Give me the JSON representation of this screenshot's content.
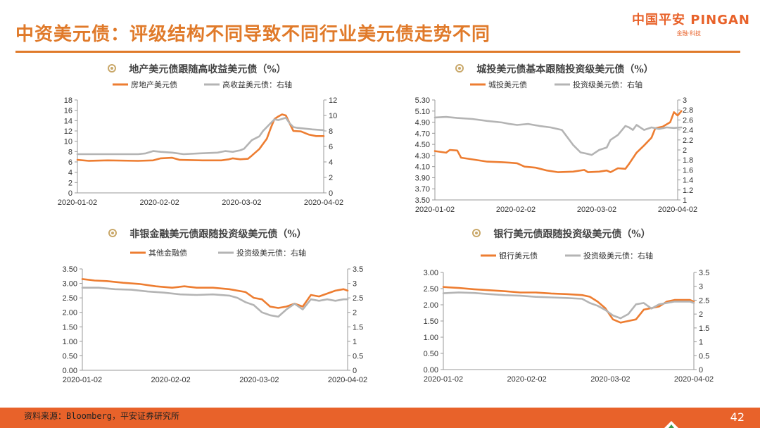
{
  "header": {
    "title": "中资美元债：评级结构不同导致不同行业美元债走势不同",
    "logo_text": "中国平安 PINGAN",
    "logo_sub": "金融·科技"
  },
  "footer": {
    "source": "资料来源：Bloomberg，平安证券研究所",
    "page_number": "42"
  },
  "colors": {
    "accent": "#e07a2a",
    "series_orange": "#ed7d31",
    "series_gray": "#b4b4b4",
    "footer": "#e8622a"
  },
  "chart_data": [
    {
      "type": "line",
      "title": "地产美元债跟随高收益美元债（%）",
      "x_ticks": [
        "2020-01-02",
        "2020-02-02",
        "2020-03-02",
        "2020-04-02"
      ],
      "x_range": [
        0,
        65
      ],
      "y_left": {
        "ticks": [
          "0",
          "2",
          "4",
          "6",
          "8",
          "10",
          "12",
          "14",
          "16",
          "18"
        ],
        "range": [
          0,
          18
        ]
      },
      "y_right": {
        "ticks": [
          "0",
          "2",
          "4",
          "6",
          "8",
          "10",
          "12"
        ],
        "range": [
          0,
          12
        ]
      },
      "series": [
        {
          "name": "房地产美元债",
          "axis": "left",
          "color": "#ed7d31",
          "points": [
            [
              0,
              6.4
            ],
            [
              3,
              6.2
            ],
            [
              8,
              6.3
            ],
            [
              16,
              6.2
            ],
            [
              20,
              6.3
            ],
            [
              22,
              6.7
            ],
            [
              25,
              6.8
            ],
            [
              27,
              6.4
            ],
            [
              33,
              6.3
            ],
            [
              38,
              6.3
            ],
            [
              40,
              6.5
            ],
            [
              41,
              6.7
            ],
            [
              43,
              6.5
            ],
            [
              45,
              6.6
            ],
            [
              46,
              7.2
            ],
            [
              48,
              8.5
            ],
            [
              50,
              10.5
            ],
            [
              51,
              12.5
            ],
            [
              52,
              14.3
            ],
            [
              53,
              14.8
            ],
            [
              54,
              15.2
            ],
            [
              55,
              15.0
            ],
            [
              56,
              13.5
            ],
            [
              57,
              12.0
            ],
            [
              59,
              11.9
            ],
            [
              61,
              11.3
            ],
            [
              63,
              11.0
            ],
            [
              65,
              11.0
            ]
          ]
        },
        {
          "name": "高收益美元债：右轴",
          "axis": "right",
          "color": "#b4b4b4",
          "points": [
            [
              0,
              5.0
            ],
            [
              5,
              5.0
            ],
            [
              10,
              5.0
            ],
            [
              16,
              5.0
            ],
            [
              18,
              5.1
            ],
            [
              20,
              5.4
            ],
            [
              22,
              5.3
            ],
            [
              25,
              5.2
            ],
            [
              28,
              5.0
            ],
            [
              32,
              5.1
            ],
            [
              37,
              5.2
            ],
            [
              39,
              5.4
            ],
            [
              41,
              5.3
            ],
            [
              43,
              5.5
            ],
            [
              44,
              5.7
            ],
            [
              46,
              6.8
            ],
            [
              48,
              7.3
            ],
            [
              49,
              8.0
            ],
            [
              51,
              9.0
            ],
            [
              52,
              9.5
            ],
            [
              53,
              9.4
            ],
            [
              55,
              9.7
            ],
            [
              56,
              9.0
            ],
            [
              57,
              8.5
            ],
            [
              58,
              8.4
            ],
            [
              60,
              8.3
            ],
            [
              62,
              8.2
            ],
            [
              65,
              8.1
            ]
          ]
        }
      ]
    },
    {
      "type": "line",
      "title": "城投美元债基本跟随投资级美元债（%）",
      "x_ticks": [
        "2020-01-02",
        "2020-02-02",
        "2020-03-02",
        "2020-04-02"
      ],
      "x_range": [
        0,
        65
      ],
      "y_left": {
        "ticks": [
          "3.50",
          "3.70",
          "3.90",
          "4.10",
          "4.30",
          "4.50",
          "4.70",
          "4.90",
          "5.10",
          "5.30"
        ],
        "range": [
          3.5,
          5.3
        ]
      },
      "y_right": {
        "ticks": [
          "1",
          "1.2",
          "1.4",
          "1.6",
          "1.8",
          "2",
          "2.2",
          "2.4",
          "2.6",
          "2.8",
          "3"
        ],
        "range": [
          1,
          3
        ]
      },
      "series": [
        {
          "name": "城投美元债",
          "axis": "left",
          "color": "#ed7d31",
          "points": [
            [
              0,
              4.38
            ],
            [
              3,
              4.35
            ],
            [
              4,
              4.4
            ],
            [
              6,
              4.39
            ],
            [
              7,
              4.26
            ],
            [
              10,
              4.23
            ],
            [
              14,
              4.19
            ],
            [
              18,
              4.18
            ],
            [
              20,
              4.17
            ],
            [
              22,
              4.16
            ],
            [
              24,
              4.1
            ],
            [
              27,
              4.08
            ],
            [
              30,
              4.03
            ],
            [
              33,
              4.0
            ],
            [
              37,
              4.01
            ],
            [
              40,
              4.04
            ],
            [
              41,
              4.0
            ],
            [
              44,
              4.01
            ],
            [
              46,
              4.03
            ],
            [
              47,
              4.0
            ],
            [
              49,
              4.07
            ],
            [
              51,
              4.06
            ],
            [
              52,
              4.15
            ],
            [
              54,
              4.35
            ],
            [
              56,
              4.48
            ],
            [
              58,
              4.62
            ],
            [
              59,
              4.79
            ],
            [
              61,
              4.82
            ],
            [
              63,
              4.9
            ],
            [
              64,
              5.08
            ],
            [
              65,
              5.02
            ],
            [
              66,
              5.1
            ]
          ]
        },
        {
          "name": "投资级美元债：右轴",
          "axis": "right",
          "color": "#b4b4b4",
          "points": [
            [
              0,
              2.65
            ],
            [
              3,
              2.66
            ],
            [
              6,
              2.64
            ],
            [
              10,
              2.62
            ],
            [
              14,
              2.58
            ],
            [
              18,
              2.55
            ],
            [
              20,
              2.52
            ],
            [
              22,
              2.5
            ],
            [
              25,
              2.52
            ],
            [
              28,
              2.48
            ],
            [
              31,
              2.45
            ],
            [
              34,
              2.4
            ],
            [
              35,
              2.3
            ],
            [
              37,
              2.1
            ],
            [
              39,
              1.95
            ],
            [
              41,
              1.92
            ],
            [
              42,
              1.9
            ],
            [
              44,
              2.0
            ],
            [
              46,
              2.05
            ],
            [
              47,
              2.2
            ],
            [
              49,
              2.3
            ],
            [
              51,
              2.48
            ],
            [
              52,
              2.45
            ],
            [
              53,
              2.4
            ],
            [
              54,
              2.5
            ],
            [
              56,
              2.4
            ],
            [
              58,
              2.45
            ],
            [
              60,
              2.42
            ],
            [
              62,
              2.45
            ],
            [
              64,
              2.44
            ],
            [
              66,
              2.45
            ]
          ]
        }
      ]
    },
    {
      "type": "line",
      "title": "非银金融美元债跟随投资级美元债（%）",
      "x_ticks": [
        "2020-01-02",
        "2020-02-02",
        "2020-03-02",
        "2020-04-02"
      ],
      "x_range": [
        0,
        65
      ],
      "y_left": {
        "ticks": [
          "0.00",
          "0.50",
          "1.00",
          "1.50",
          "2.00",
          "2.50",
          "3.00",
          "3.50"
        ],
        "range": [
          0,
          3.5
        ]
      },
      "y_right": {
        "ticks": [
          "0",
          "0.5",
          "1",
          "1.5",
          "2",
          "2.5",
          "3",
          "3.5"
        ],
        "range": [
          0,
          3.5
        ]
      },
      "series": [
        {
          "name": "其他金融债",
          "axis": "left",
          "color": "#ed7d31",
          "points": [
            [
              0,
              3.15
            ],
            [
              3,
              3.1
            ],
            [
              6,
              3.08
            ],
            [
              10,
              3.02
            ],
            [
              14,
              2.98
            ],
            [
              18,
              2.9
            ],
            [
              22,
              2.85
            ],
            [
              25,
              2.9
            ],
            [
              28,
              2.85
            ],
            [
              32,
              2.85
            ],
            [
              36,
              2.8
            ],
            [
              40,
              2.7
            ],
            [
              42,
              2.5
            ],
            [
              44,
              2.45
            ],
            [
              46,
              2.2
            ],
            [
              48,
              2.15
            ],
            [
              50,
              2.2
            ],
            [
              52,
              2.3
            ],
            [
              54,
              2.2
            ],
            [
              56,
              2.6
            ],
            [
              58,
              2.55
            ],
            [
              60,
              2.65
            ],
            [
              62,
              2.75
            ],
            [
              64,
              2.8
            ],
            [
              65,
              2.75
            ]
          ]
        },
        {
          "name": "投资级美元债：右轴",
          "axis": "right",
          "color": "#b4b4b4",
          "points": [
            [
              0,
              2.85
            ],
            [
              4,
              2.85
            ],
            [
              8,
              2.8
            ],
            [
              12,
              2.78
            ],
            [
              16,
              2.72
            ],
            [
              20,
              2.68
            ],
            [
              24,
              2.62
            ],
            [
              28,
              2.6
            ],
            [
              32,
              2.62
            ],
            [
              36,
              2.58
            ],
            [
              38,
              2.5
            ],
            [
              40,
              2.35
            ],
            [
              42,
              2.25
            ],
            [
              44,
              2.0
            ],
            [
              46,
              1.9
            ],
            [
              48,
              1.85
            ],
            [
              50,
              2.1
            ],
            [
              52,
              2.3
            ],
            [
              54,
              2.1
            ],
            [
              56,
              2.45
            ],
            [
              58,
              2.4
            ],
            [
              60,
              2.45
            ],
            [
              62,
              2.4
            ],
            [
              64,
              2.45
            ],
            [
              65,
              2.45
            ]
          ]
        }
      ]
    },
    {
      "type": "line",
      "title": "银行美元债跟随投资级美元债（%）",
      "x_ticks": [
        "2020-01-02",
        "2020-02-02",
        "2020-03-02",
        "2020-04-02"
      ],
      "x_range": [
        0,
        65
      ],
      "y_left": {
        "ticks": [
          "0.00",
          "0.50",
          "1.00",
          "1.50",
          "2.00",
          "2.50",
          "3.00"
        ],
        "range": [
          0,
          3.0
        ]
      },
      "y_right": {
        "ticks": [
          "0",
          "0.5",
          "1",
          "1.5",
          "2",
          "2.5",
          "3",
          "3.5"
        ],
        "range": [
          0,
          3.5
        ]
      },
      "series": [
        {
          "name": "银行美元债",
          "axis": "left",
          "color": "#ed7d31",
          "points": [
            [
              0,
              2.55
            ],
            [
              4,
              2.52
            ],
            [
              8,
              2.48
            ],
            [
              12,
              2.45
            ],
            [
              16,
              2.42
            ],
            [
              20,
              2.38
            ],
            [
              24,
              2.38
            ],
            [
              28,
              2.35
            ],
            [
              32,
              2.33
            ],
            [
              36,
              2.3
            ],
            [
              38,
              2.25
            ],
            [
              40,
              2.1
            ],
            [
              42,
              1.9
            ],
            [
              44,
              1.55
            ],
            [
              46,
              1.45
            ],
            [
              48,
              1.5
            ],
            [
              50,
              1.55
            ],
            [
              52,
              1.85
            ],
            [
              54,
              1.9
            ],
            [
              56,
              1.95
            ],
            [
              58,
              2.1
            ],
            [
              60,
              2.15
            ],
            [
              62,
              2.15
            ],
            [
              64,
              2.15
            ],
            [
              65,
              2.1
            ]
          ]
        },
        {
          "name": "投资级美元债：右轴",
          "axis": "right",
          "color": "#b4b4b4",
          "points": [
            [
              0,
              2.75
            ],
            [
              4,
              2.78
            ],
            [
              8,
              2.76
            ],
            [
              12,
              2.72
            ],
            [
              16,
              2.68
            ],
            [
              20,
              2.66
            ],
            [
              24,
              2.62
            ],
            [
              28,
              2.6
            ],
            [
              32,
              2.58
            ],
            [
              36,
              2.55
            ],
            [
              38,
              2.4
            ],
            [
              40,
              2.3
            ],
            [
              42,
              2.15
            ],
            [
              44,
              1.95
            ],
            [
              46,
              1.85
            ],
            [
              48,
              2.0
            ],
            [
              50,
              2.35
            ],
            [
              52,
              2.4
            ],
            [
              54,
              2.2
            ],
            [
              56,
              2.35
            ],
            [
              58,
              2.4
            ],
            [
              60,
              2.45
            ],
            [
              62,
              2.45
            ],
            [
              64,
              2.45
            ],
            [
              65,
              2.4
            ]
          ]
        }
      ]
    }
  ]
}
